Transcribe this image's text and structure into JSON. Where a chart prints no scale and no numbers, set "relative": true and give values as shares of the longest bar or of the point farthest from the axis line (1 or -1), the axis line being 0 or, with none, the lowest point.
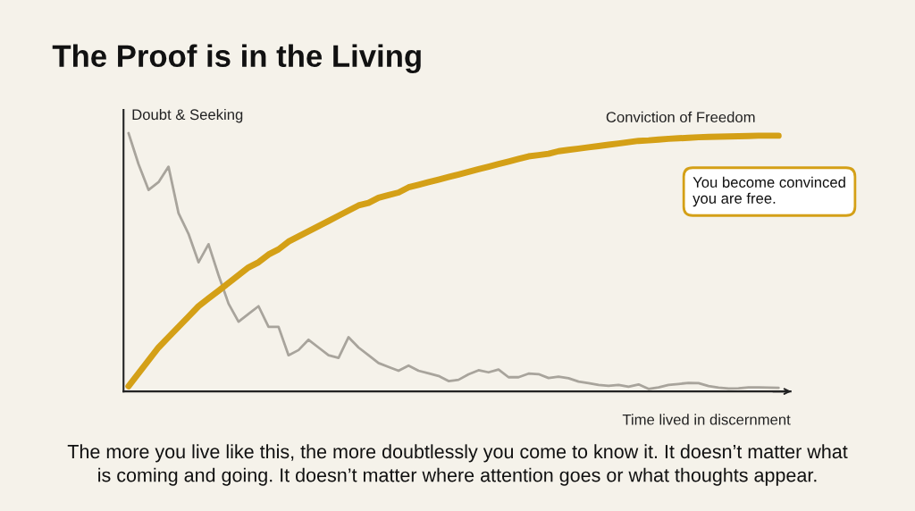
{
  "chart_data": {
    "type": "line",
    "title": "The Proof is in the Living",
    "xlabel": "Time lived in discernment",
    "relative": true,
    "legend": false,
    "marker": "none",
    "line_style": "solid",
    "categories": [
      null,
      null,
      null,
      null,
      null,
      null,
      null,
      null,
      null,
      null,
      null,
      null,
      null,
      null,
      null,
      null,
      null,
      null,
      null,
      null,
      null,
      null,
      null,
      null,
      null,
      null,
      null,
      null,
      null,
      null,
      null,
      null,
      null,
      null,
      null,
      null,
      null,
      null,
      null,
      null,
      null,
      null,
      null,
      null,
      null,
      null,
      null,
      null,
      null,
      null,
      null,
      null,
      null,
      null,
      null,
      null,
      null,
      null,
      null,
      null,
      null,
      null,
      null,
      null,
      null,
      null
    ],
    "series": [
      {
        "name": "Doubt & Seeking",
        "color": "#a8a49c",
        "values": [
          1.0,
          0.88,
          0.78,
          0.81,
          0.87,
          0.69,
          0.61,
          0.5,
          0.57,
          0.45,
          0.34,
          0.27,
          0.3,
          0.33,
          0.25,
          0.25,
          0.14,
          0.16,
          0.2,
          0.17,
          0.14,
          0.13,
          0.21,
          0.17,
          0.14,
          0.11,
          0.095,
          0.08,
          0.1,
          0.08,
          0.07,
          0.06,
          0.04,
          0.045,
          0.066,
          0.082,
          0.074,
          0.085,
          0.055,
          0.055,
          0.069,
          0.067,
          0.052,
          0.057,
          0.051,
          0.038,
          0.032,
          0.025,
          0.022,
          0.025,
          0.018,
          0.027,
          0.01,
          0.016,
          0.025,
          0.029,
          0.033,
          0.032,
          0.021,
          0.015,
          0.011,
          0.012,
          0.016,
          0.016,
          0.015,
          0.014
        ]
      },
      {
        "name": "Conviction of Freedom",
        "color": "#d4a017",
        "values": [
          0.02,
          0.07,
          0.12,
          0.17,
          0.21,
          0.25,
          0.29,
          0.33,
          0.36,
          0.39,
          0.42,
          0.45,
          0.48,
          0.5,
          0.53,
          0.55,
          0.58,
          0.6,
          0.62,
          0.64,
          0.66,
          0.68,
          0.7,
          0.72,
          0.73,
          0.75,
          0.76,
          0.77,
          0.79,
          0.8,
          0.81,
          0.82,
          0.83,
          0.84,
          0.85,
          0.86,
          0.87,
          0.88,
          0.89,
          0.9,
          0.91,
          0.915,
          0.92,
          0.93,
          0.935,
          0.94,
          0.945,
          0.95,
          0.955,
          0.96,
          0.965,
          0.97,
          0.972,
          0.975,
          0.978,
          0.98,
          0.982,
          0.984,
          0.985,
          0.986,
          0.987,
          0.988,
          0.989,
          0.99,
          0.99,
          0.99
        ]
      }
    ],
    "annotations": [
      "You become convinced\nyou are free.",
      "The more you live like this, the more doubtlessly you come to know it. It doesn’t matter what\nis coming and going. It doesn’t matter where attention goes or what thoughts appear."
    ]
  }
}
